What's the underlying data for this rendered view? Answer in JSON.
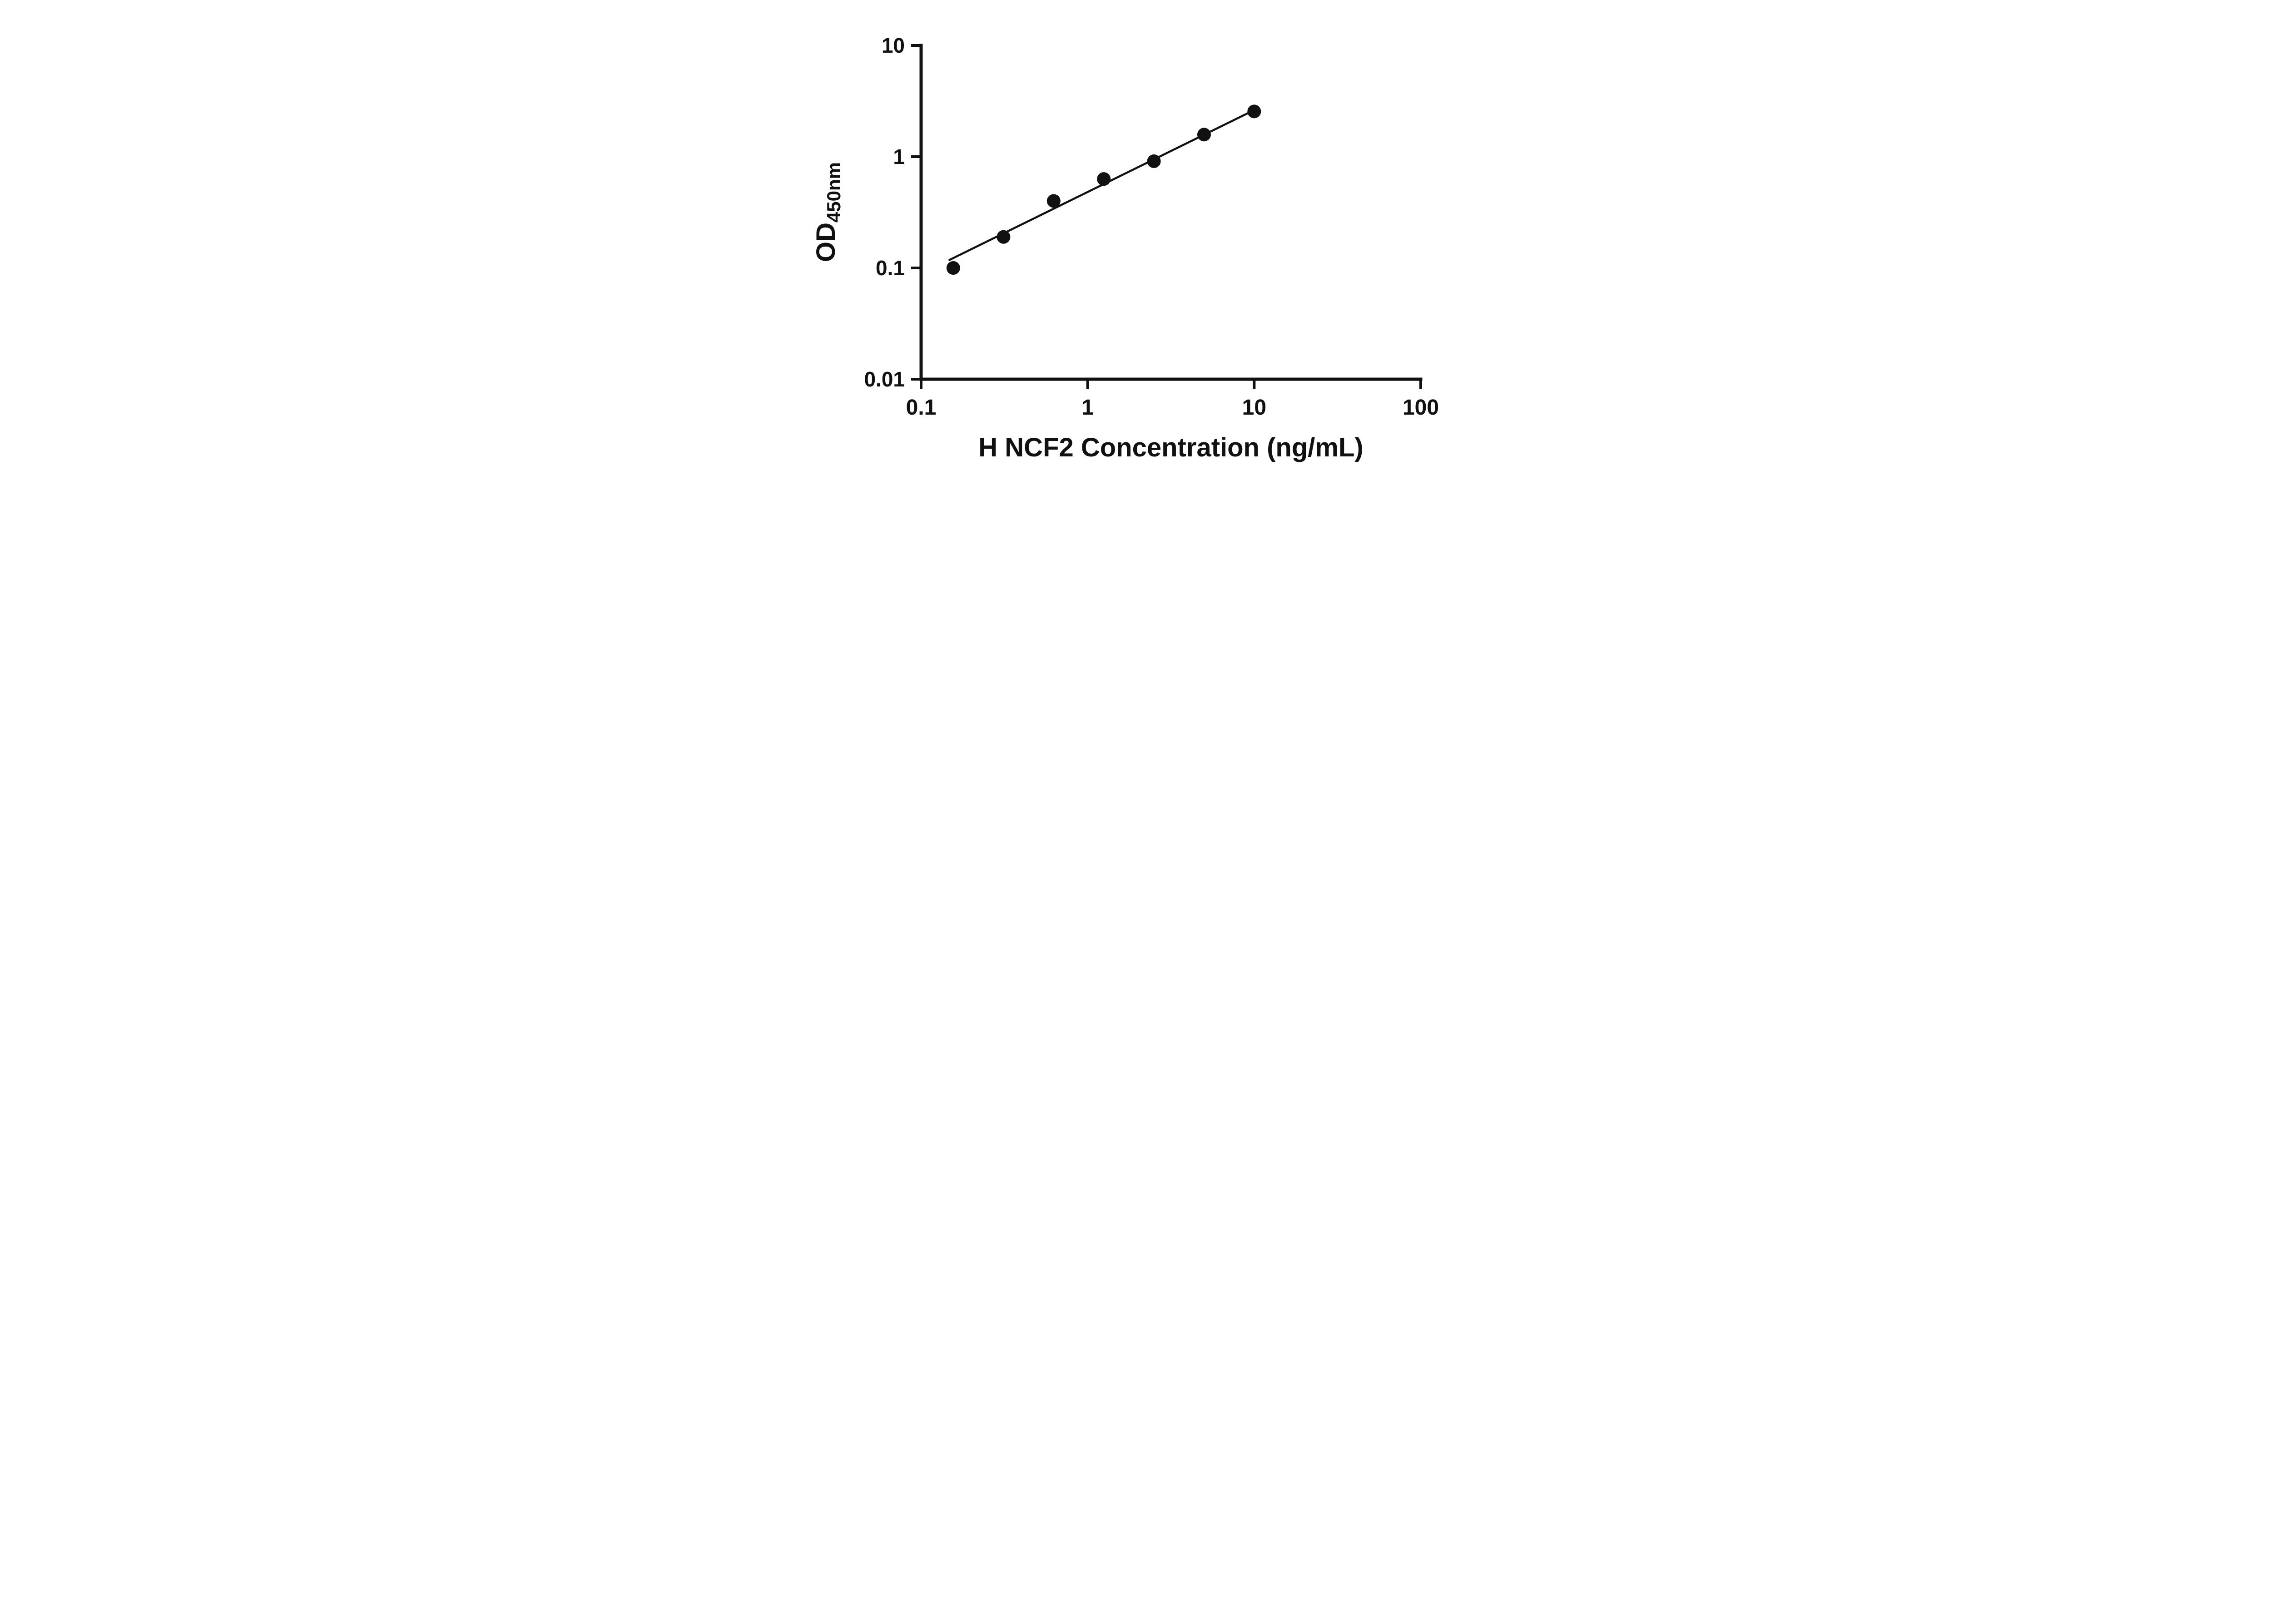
{
  "chart_data": {
    "type": "scatter",
    "title": "",
    "xlabel": "H NCF2 Concentration (ng/mL)",
    "ylabel_main": "OD",
    "ylabel_sub": "450nm",
    "x_scale": "log",
    "y_scale": "log",
    "xlim": [
      0.1,
      100
    ],
    "ylim": [
      0.01,
      10
    ],
    "x_ticks": [
      0.1,
      1,
      10,
      100
    ],
    "x_tick_labels": [
      "0.1",
      "1",
      "10",
      "100"
    ],
    "y_ticks": [
      0.01,
      0.1,
      1,
      10
    ],
    "y_tick_labels": [
      "0.01",
      "0.1",
      "1",
      "10"
    ],
    "grid": false,
    "legend": "none",
    "points": [
      {
        "x": 0.156,
        "y": 0.1
      },
      {
        "x": 0.3125,
        "y": 0.19
      },
      {
        "x": 0.625,
        "y": 0.4
      },
      {
        "x": 1.25,
        "y": 0.63
      },
      {
        "x": 2.5,
        "y": 0.91
      },
      {
        "x": 5,
        "y": 1.58
      },
      {
        "x": 10,
        "y": 2.55
      }
    ],
    "trendline": {
      "x1": 0.148,
      "y1": 0.118,
      "x2": 10.4,
      "y2": 2.7
    },
    "marker_color": "#111111",
    "line_color": "#111111",
    "axis_color": "#111111",
    "background": "#ffffff"
  }
}
